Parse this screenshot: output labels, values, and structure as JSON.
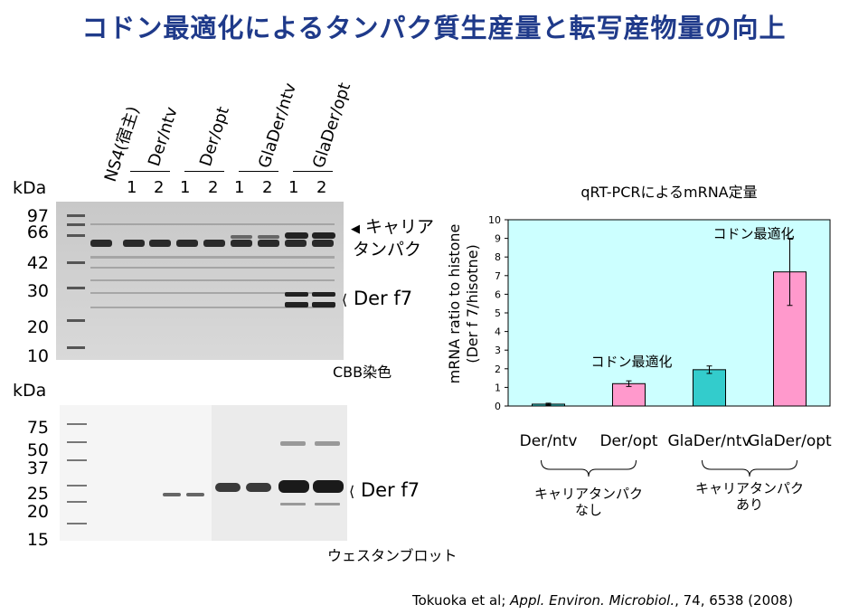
{
  "slide": {
    "title": "コドン最適化によるタンパク質生産量と転写産物量の向上",
    "citation_authors": "Tokuoka et al; ",
    "citation_journal": "Appl. Environ. Microbiol.",
    "citation_rest": ", 74, 6538  (2008)"
  },
  "gel": {
    "lanes": [
      "NS4(宿主)",
      "Der/ntv",
      "Der/opt",
      "GlaDer/ntv",
      "GlaDer/opt"
    ],
    "lane_numbers": [
      "1",
      "2",
      "1",
      "2",
      "1",
      "2",
      "1",
      "2"
    ],
    "cbb": {
      "unit": "kDa",
      "markers": [
        "97",
        "66",
        "42",
        "30",
        "20",
        "10"
      ],
      "carrier_label_1": "キャリア",
      "carrier_label_2": "タンパク",
      "der_label": "Der f7",
      "caption": "CBB染色"
    },
    "western": {
      "unit": "kDa",
      "markers": [
        "75",
        "50",
        "37",
        "25",
        "20",
        "15"
      ],
      "der_label": "Der f7",
      "caption": "ウェスタンブロット"
    }
  },
  "chart_data": {
    "type": "bar",
    "title": "qRT-PCRによるmRNA定量",
    "ylabel_line1": "mRNA ratio to histone",
    "ylabel_line2": "(Der f 7/hisotne)",
    "categories": [
      "Der/ntv",
      "Der/opt",
      "GlaDer/ntv",
      "GlaDer/opt"
    ],
    "values": [
      0.1,
      1.2,
      1.95,
      7.2
    ],
    "errors": [
      0.05,
      0.15,
      0.2,
      1.8
    ],
    "colors": [
      "#33cccc",
      "#ff99cc",
      "#33cccc",
      "#ff99cc"
    ],
    "ylim": [
      0,
      10
    ],
    "yticks": [
      "0",
      "1",
      "2",
      "3",
      "4",
      "5",
      "6",
      "7",
      "8",
      "9",
      "10"
    ],
    "plot_bg": "#ccffff",
    "annotation_opt": "コドン最適化",
    "annotation_glaopt": "コドン最適化",
    "group1_line1": "キャリアタンパク",
    "group1_line2": "なし",
    "group2_line1": "キャリアタンパク",
    "group2_line2": "あり"
  }
}
